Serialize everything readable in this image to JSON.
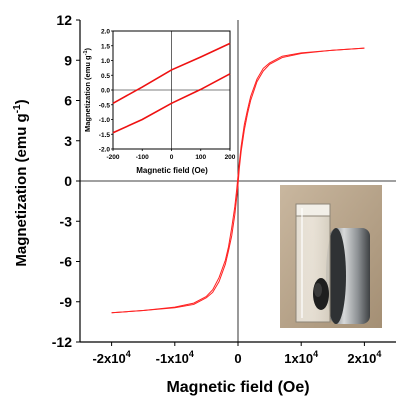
{
  "chart_data": [
    {
      "type": "line",
      "xlabel": "Magnetic field (Oe)",
      "ylabel_main": "Magnetization (emu g",
      "ylabel_sup": "-1",
      "ylabel_close": ")",
      "xlim": [
        -25000,
        25000
      ],
      "ylim": [
        -12,
        12
      ],
      "x_ticks": [
        {
          "value": -20000,
          "mant": "-2x10",
          "exp": "4"
        },
        {
          "value": -10000,
          "mant": "-1x10",
          "exp": "4"
        },
        {
          "value": 0,
          "mant": "0",
          "exp": ""
        },
        {
          "value": 10000,
          "mant": "1x10",
          "exp": "4"
        },
        {
          "value": 20000,
          "mant": "2x10",
          "exp": "4"
        }
      ],
      "y_ticks": [
        {
          "value": -12,
          "label": "-12"
        },
        {
          "value": -9,
          "label": "-9"
        },
        {
          "value": -6,
          "label": "-6"
        },
        {
          "value": -3,
          "label": "-3"
        },
        {
          "value": 0,
          "label": "0"
        },
        {
          "value": 3,
          "label": "3"
        },
        {
          "value": 6,
          "label": "6"
        },
        {
          "value": 9,
          "label": "9"
        },
        {
          "value": 12,
          "label": "12"
        }
      ],
      "color": "#ff2020",
      "series": [
        {
          "points": [
            [
              -20000,
              -9.82
            ],
            [
              -15000,
              -9.65
            ],
            [
              -10000,
              -9.4
            ],
            [
              -7000,
              -9.1
            ],
            [
              -5000,
              -8.6
            ],
            [
              -4000,
              -8.1
            ],
            [
              -3000,
              -7.2
            ],
            [
              -2000,
              -5.9
            ],
            [
              -1500,
              -4.9
            ],
            [
              -1000,
              -3.5
            ],
            [
              -500,
              -1.9
            ],
            [
              -200,
              -0.6
            ],
            [
              0,
              0.4
            ],
            [
              200,
              1.3
            ],
            [
              500,
              2.6
            ],
            [
              1000,
              4.2
            ],
            [
              1500,
              5.3
            ],
            [
              2000,
              6.3
            ],
            [
              3000,
              7.6
            ],
            [
              4000,
              8.4
            ],
            [
              5000,
              8.8
            ],
            [
              7000,
              9.3
            ],
            [
              10000,
              9.55
            ],
            [
              15000,
              9.75
            ],
            [
              20000,
              9.9
            ]
          ]
        },
        {
          "points": [
            [
              20000,
              9.9
            ],
            [
              15000,
              9.75
            ],
            [
              10000,
              9.5
            ],
            [
              7000,
              9.2
            ],
            [
              5000,
              8.7
            ],
            [
              4000,
              8.2
            ],
            [
              3000,
              7.4
            ],
            [
              2000,
              6.0
            ],
            [
              1500,
              5.0
            ],
            [
              1000,
              3.8
            ],
            [
              500,
              2.2
            ],
            [
              200,
              0.9
            ],
            [
              0,
              -0.3
            ],
            [
              -200,
              -1.2
            ],
            [
              -500,
              -2.5
            ],
            [
              -1000,
              -4.1
            ],
            [
              -1500,
              -5.2
            ],
            [
              -2000,
              -6.2
            ],
            [
              -3000,
              -7.5
            ],
            [
              -4000,
              -8.3
            ],
            [
              -5000,
              -8.7
            ],
            [
              -7000,
              -9.2
            ],
            [
              -10000,
              -9.45
            ],
            [
              -15000,
              -9.65
            ],
            [
              -20000,
              -9.82
            ]
          ]
        }
      ]
    },
    {
      "type": "line",
      "xlabel": "Magnetic field (Oe)",
      "ylabel_main": "Magnetization (emu g",
      "ylabel_sup": "-1",
      "ylabel_close": ")",
      "xlim": [
        -200,
        200
      ],
      "ylim": [
        -2.0,
        2.0
      ],
      "x_ticks": [
        {
          "value": -200,
          "label": "-200"
        },
        {
          "value": -100,
          "label": "-100"
        },
        {
          "value": 0,
          "label": "0"
        },
        {
          "value": 100,
          "label": "100"
        },
        {
          "value": 200,
          "label": "200"
        }
      ],
      "y_ticks": [
        {
          "value": 2.0,
          "label": "2.0"
        },
        {
          "value": 1.5,
          "label": "1.5"
        },
        {
          "value": 1.0,
          "label": "1.0"
        },
        {
          "value": 0.5,
          "label": "0.5"
        },
        {
          "value": 0.0,
          "label": "0.0"
        },
        {
          "value": -0.5,
          "label": "-0.5"
        },
        {
          "value": -1.0,
          "label": "-1.0"
        },
        {
          "value": -1.5,
          "label": "-1.5"
        },
        {
          "value": -2.0,
          "label": "-2.0"
        }
      ],
      "color": "#ee1111",
      "series": [
        {
          "points": [
            [
              -200,
              -0.45
            ],
            [
              -100,
              0.1
            ],
            [
              0,
              0.68
            ],
            [
              100,
              1.12
            ],
            [
              200,
              1.58
            ]
          ]
        },
        {
          "points": [
            [
              -200,
              -1.45
            ],
            [
              -100,
              -1.0
            ],
            [
              0,
              -0.45
            ],
            [
              100,
              0.02
            ],
            [
              200,
              0.55
            ]
          ]
        }
      ]
    }
  ],
  "photo": {
    "description_icon": "vial-magnet-photo"
  }
}
